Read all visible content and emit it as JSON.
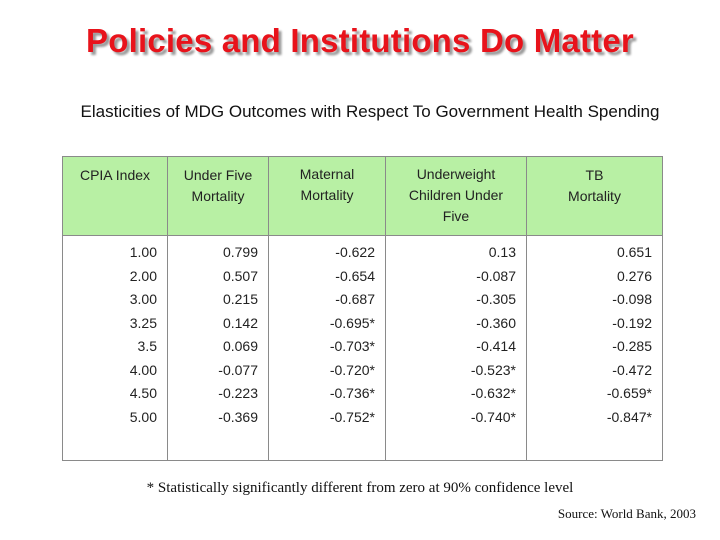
{
  "title": "Policies and Institutions Do Matter",
  "subtitle": "Elasticities of MDG Outcomes with Respect To Government Health Spending",
  "table": {
    "columns": [
      {
        "header": "CPIA Index",
        "values": [
          "1.00",
          "2.00",
          "3.00",
          "3.25",
          "3.5",
          "4.00",
          "4.50",
          "5.00"
        ]
      },
      {
        "header": "Under Five Mortality",
        "values": [
          "0.799",
          "0.507",
          "0.215",
          "0.142",
          "0.069",
          "-0.077",
          "-0.223",
          "-0.369"
        ]
      },
      {
        "header": "Maternal Mortality",
        "values": [
          "-0.622",
          "-0.654",
          "-0.687",
          "-0.695*",
          "-0.703*",
          "-0.720*",
          "-0.736*",
          "-0.752*"
        ]
      },
      {
        "header": "Underweight Children Under Five",
        "values": [
          "0.13",
          "-0.087",
          "-0.305",
          "-0.360",
          "-0.414",
          "-0.523*",
          "-0.632*",
          "-0.740*"
        ]
      },
      {
        "header": "TB Mortality",
        "values": [
          "0.651",
          "0.276",
          "-0.098",
          "-0.192",
          "-0.285",
          "-0.472",
          "-0.659*",
          "-0.847*"
        ]
      }
    ]
  },
  "footnote": "* Statistically significantly different from zero at 90% confidence level",
  "source": "Source: World Bank, 2003"
}
